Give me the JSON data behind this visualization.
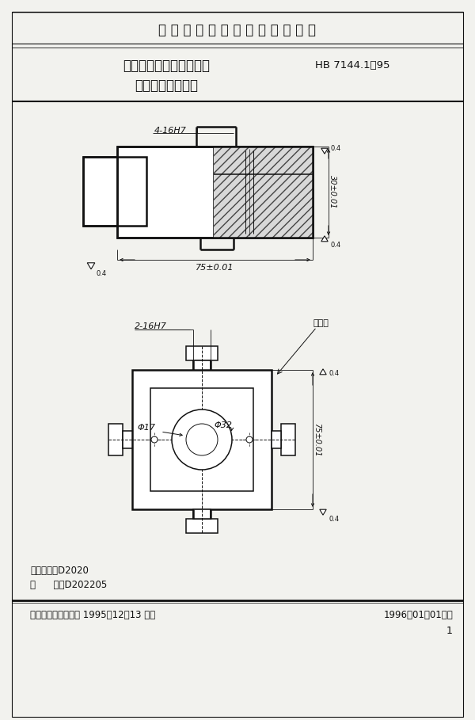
{
  "title_main": "中 华 人 民 共 和 国 航 空 工 业 标 准",
  "title_sub1": "大型系列组合夹具支承件",
  "title_sub2": "二竖槽正方形支承",
  "title_code": "HB 7144.1－95",
  "footer_left": "中国航空工业总公司 1995－12－13 发布",
  "footer_right": "1996－01－01实施",
  "footer_page": "1",
  "class_code": "分类代号：D2020",
  "mark_code": "标      记：D202205",
  "dim_top_label": "4-16H7",
  "dim_top_width": "75±0.01",
  "dim_top_height": "30±0.01",
  "dim_top_ra1": "0.4",
  "dim_top_ra2": "0.4",
  "dim_bot_label": "2-16H7",
  "dim_bot_phi17": "Φ17",
  "dim_bot_phi32": "Φ32",
  "dim_bot_width": "75±0.01",
  "dim_bot_ra": "0.4",
  "dim_bot_biaoji": "标记处",
  "bg_color": "#f2f2ee",
  "line_color": "#111111",
  "text_color": "#111111"
}
